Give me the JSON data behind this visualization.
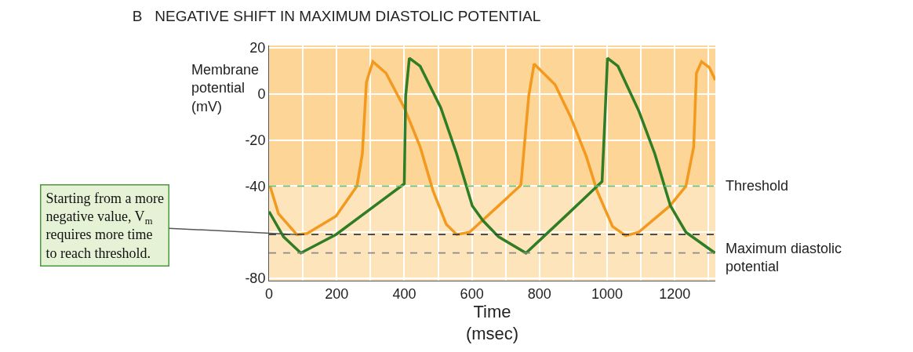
{
  "chart_data": {
    "type": "line",
    "title": "B   NEGATIVE SHIFT IN MAXIMUM DIASTOLIC POTENTIAL",
    "xlabel": "Time\n(msec)",
    "ylabel": "Membrane\npotential\n(mV)",
    "series": [
      {
        "color": "#f39a1e",
        "x": [
          3,
          28,
          82,
          113,
          198,
          260,
          276,
          288,
          307,
          346,
          400,
          447,
          485,
          524,
          555,
          593,
          679,
          745,
          768,
          784,
          846,
          892,
          938,
          970,
          1016,
          1055,
          1093,
          1186,
          1233,
          1256,
          1264,
          1279,
          1302,
          1320
        ],
        "values": [
          -40,
          -52,
          -61,
          -60.5,
          -53,
          -40,
          -26,
          5,
          14,
          9,
          -6,
          -23,
          -42,
          -56.5,
          -61,
          -60,
          -48.5,
          -39.5,
          -1,
          13,
          4,
          -10,
          -27,
          -42,
          -57.5,
          -61.5,
          -60,
          -48.5,
          -40,
          -23,
          9,
          14,
          11.5,
          6
        ]
      },
      {
        "color": "#2f7d24",
        "x": [
          0,
          43,
          94,
          198,
          400,
          404,
          415,
          447,
          508,
          555,
          601,
          633,
          679,
          760,
          877,
          985,
          993,
          1001,
          1032,
          1094,
          1141,
          1187,
          1233,
          1319
        ],
        "values": [
          -51,
          -62,
          -69,
          -61,
          -39,
          -1,
          15.5,
          12,
          -6,
          -26,
          -48.5,
          -55,
          -62,
          -69,
          -53,
          -38,
          -12,
          15.5,
          12,
          -7.5,
          -26,
          -48.5,
          -60,
          -69
        ]
      }
    ],
    "xlim": [
      0,
      1320
    ],
    "ylim": [
      -81,
      21
    ],
    "xticks": [
      0,
      {
        "value": 100,
        "label": null
      },
      200,
      {
        "value": 300,
        "label": null
      },
      400,
      {
        "value": 500,
        "label": null
      },
      600,
      {
        "value": 700,
        "label": null
      },
      800,
      {
        "value": 900,
        "label": null
      },
      1000,
      {
        "value": 1100,
        "label": null
      },
      1200,
      {
        "value": 1300,
        "label": null
      }
    ],
    "yticks": [
      -80,
      {
        "value": -60,
        "label": null
      },
      -40,
      -20,
      0,
      20
    ],
    "grid": true,
    "line_style": "solid",
    "marker": "none",
    "bands": [
      {
        "axis": "y",
        "from": -81,
        "to": -40,
        "color": "#fde4bb"
      }
    ],
    "ref_lines": [
      {
        "axis": "y",
        "value": -40,
        "label": "Threshold",
        "color": "#6cc070",
        "line_style": "dashed"
      },
      {
        "axis": "y",
        "value": -61,
        "color": "#3a3a3a",
        "line_style": "dashed"
      },
      {
        "axis": "y",
        "value": -69,
        "color": "#8a8a8a",
        "line_style": "dashed"
      }
    ],
    "annotations": [
      {
        "text": "Starting from a more\nnegative value, V$_{m}$\nrequires more time\nto reach threshold.",
        "x": 82,
        "y": -61
      },
      "Maximum diastolic\npotential"
    ]
  }
}
